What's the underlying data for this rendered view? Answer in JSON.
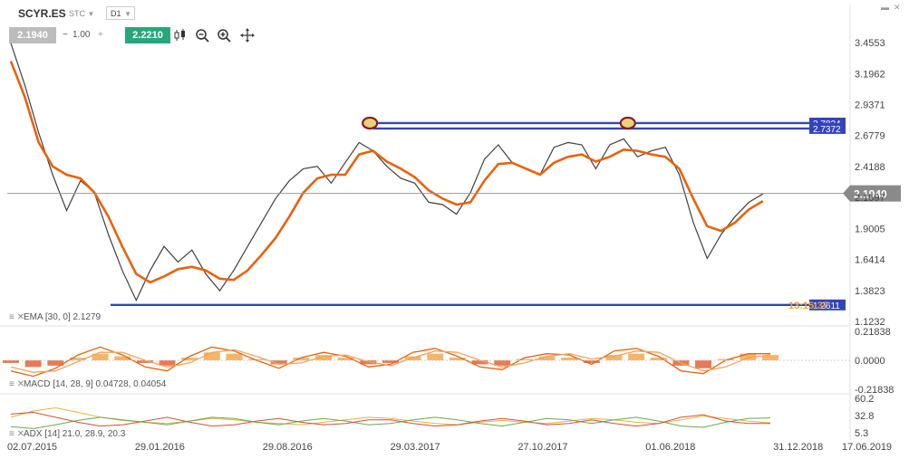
{
  "header": {
    "symbol": "SCYR.ES",
    "market": "STC",
    "timeframe": "D1",
    "bid": "2.1940",
    "volume": "1.00",
    "minus": "−",
    "plus": "+",
    "ask": "2.2210",
    "tool_icons": [
      "candlestick-type-icon",
      "zoom-out-icon",
      "zoom-in-icon",
      "crosshair-icon"
    ],
    "window_icons": [
      "minimize-icon",
      "close-icon"
    ]
  },
  "colors": {
    "price": "#404040",
    "ema": "#e8620c",
    "level_line": "#3344bb",
    "current_price_badge": "#8a8a8a",
    "ask_green": "#27a87a",
    "bid_gray": "#bcbcbc"
  },
  "chart_data": [
    {
      "type": "line",
      "name": "main",
      "y_ticks": [
        "3.4553",
        "3.1962",
        "2.9371",
        "2.6779",
        "2.4188",
        "2.1597",
        "1.9005",
        "1.6414",
        "1.3823",
        "1.1232"
      ],
      "ylim": [
        1.1232,
        3.5849
      ],
      "x_ticks": [
        "02.07.2015",
        "29.01.2016",
        "29.08.2016",
        "29.03.2017",
        "27.10.2017",
        "01.06.2018",
        "31.12.2018",
        "17.06.2019"
      ],
      "indicator_label": "EMA [30, 0] 2.1279",
      "current_price": "2.1940",
      "levels": [
        {
          "value": 2.7824,
          "label": "2.7824"
        },
        {
          "value": 2.7372,
          "label": "2.7372"
        },
        {
          "value": 1.2611,
          "label": "1.2611",
          "overlay": "13:15:37"
        }
      ],
      "highlighted_tops": [
        "29.03.2017",
        "01.06.2018"
      ],
      "series": [
        {
          "name": "price",
          "values": [
            3.45,
            3.1,
            2.7,
            2.35,
            2.05,
            2.3,
            2.2,
            1.85,
            1.55,
            1.3,
            1.55,
            1.75,
            1.62,
            1.72,
            1.52,
            1.38,
            1.55,
            1.75,
            1.95,
            2.15,
            2.3,
            2.4,
            2.42,
            2.28,
            2.45,
            2.62,
            2.55,
            2.42,
            2.32,
            2.28,
            2.12,
            2.1,
            2.02,
            2.2,
            2.48,
            2.6,
            2.45,
            2.4,
            2.35,
            2.58,
            2.62,
            2.6,
            2.4,
            2.6,
            2.65,
            2.5,
            2.55,
            2.58,
            2.35,
            1.95,
            1.65,
            1.85,
            2.0,
            2.12,
            2.19
          ]
        },
        {
          "name": "EMA",
          "values": [
            3.3,
            3.0,
            2.62,
            2.42,
            2.35,
            2.32,
            2.2,
            2.0,
            1.75,
            1.52,
            1.45,
            1.5,
            1.56,
            1.58,
            1.55,
            1.48,
            1.47,
            1.55,
            1.68,
            1.82,
            2.0,
            2.2,
            2.32,
            2.35,
            2.35,
            2.52,
            2.55,
            2.46,
            2.4,
            2.33,
            2.22,
            2.15,
            2.1,
            2.12,
            2.3,
            2.44,
            2.45,
            2.4,
            2.35,
            2.45,
            2.5,
            2.52,
            2.46,
            2.5,
            2.56,
            2.55,
            2.52,
            2.5,
            2.4,
            2.15,
            1.92,
            1.88,
            1.95,
            2.06,
            2.13
          ]
        }
      ]
    },
    {
      "type": "area",
      "name": "macd",
      "indicator_label": "MACD [14, 28, 9] 0.04728, 0.04054",
      "y_ticks": [
        "0.21838",
        "0.0000",
        "-0.21838"
      ],
      "ylim": [
        -0.21838,
        0.21838
      ],
      "series": [
        {
          "name": "histogram",
          "values": [
            -0.02,
            -0.05,
            -0.04,
            0.02,
            0.05,
            0.03,
            -0.02,
            -0.04,
            0.02,
            0.06,
            0.05,
            0.01,
            -0.03,
            0.02,
            0.04,
            0.02,
            -0.03,
            -0.02,
            0.03,
            0.05,
            0.02,
            -0.03,
            -0.04,
            0.01,
            0.03,
            0.02,
            -0.02,
            0.04,
            0.05,
            0.02,
            -0.04,
            -0.06,
            0.01,
            0.05,
            0.04
          ]
        },
        {
          "name": "macd",
          "values": [
            -0.08,
            -0.12,
            -0.06,
            0.04,
            0.1,
            0.04,
            -0.05,
            -0.08,
            0.03,
            0.1,
            0.07,
            0.0,
            -0.06,
            0.02,
            0.06,
            0.03,
            -0.05,
            -0.03,
            0.06,
            0.09,
            0.03,
            -0.05,
            -0.07,
            0.02,
            0.05,
            0.04,
            -0.03,
            0.07,
            0.09,
            0.03,
            -0.08,
            -0.1,
            0.0,
            0.05,
            0.05
          ]
        },
        {
          "name": "signal",
          "values": [
            -0.05,
            -0.09,
            -0.08,
            -0.01,
            0.06,
            0.06,
            0.0,
            -0.05,
            -0.02,
            0.06,
            0.08,
            0.03,
            -0.03,
            -0.02,
            0.03,
            0.04,
            -0.01,
            -0.04,
            0.02,
            0.07,
            0.06,
            0.0,
            -0.05,
            -0.02,
            0.03,
            0.05,
            0.01,
            0.03,
            0.07,
            0.06,
            -0.02,
            -0.08,
            -0.05,
            0.02,
            0.04
          ]
        }
      ]
    },
    {
      "type": "line",
      "name": "adx",
      "indicator_label": "ADX [14] 21.0, 28.9, 20.3",
      "y_ticks": [
        "60.2",
        "32.8",
        "5.3"
      ],
      "ylim": [
        5.3,
        60.2
      ],
      "series": [
        {
          "name": "adx",
          "values": [
            30,
            40,
            45,
            38,
            30,
            25,
            22,
            20,
            24,
            28,
            26,
            22,
            20,
            18,
            22,
            26,
            30,
            28,
            24,
            20,
            18,
            22,
            25,
            22,
            20,
            24,
            28,
            26,
            22,
            20,
            26,
            32,
            28,
            24,
            21
          ]
        },
        {
          "name": "+DI",
          "values": [
            15,
            12,
            18,
            25,
            30,
            26,
            22,
            18,
            24,
            30,
            28,
            22,
            18,
            24,
            28,
            24,
            18,
            20,
            26,
            30,
            26,
            20,
            16,
            22,
            28,
            26,
            20,
            26,
            30,
            24,
            16,
            14,
            22,
            28,
            29
          ]
        },
        {
          "name": "-DI",
          "values": [
            35,
            38,
            30,
            22,
            16,
            18,
            24,
            30,
            22,
            16,
            18,
            24,
            28,
            22,
            18,
            20,
            26,
            26,
            20,
            16,
            18,
            24,
            28,
            24,
            18,
            20,
            26,
            20,
            16,
            20,
            30,
            34,
            24,
            20,
            20
          ]
        }
      ]
    }
  ]
}
